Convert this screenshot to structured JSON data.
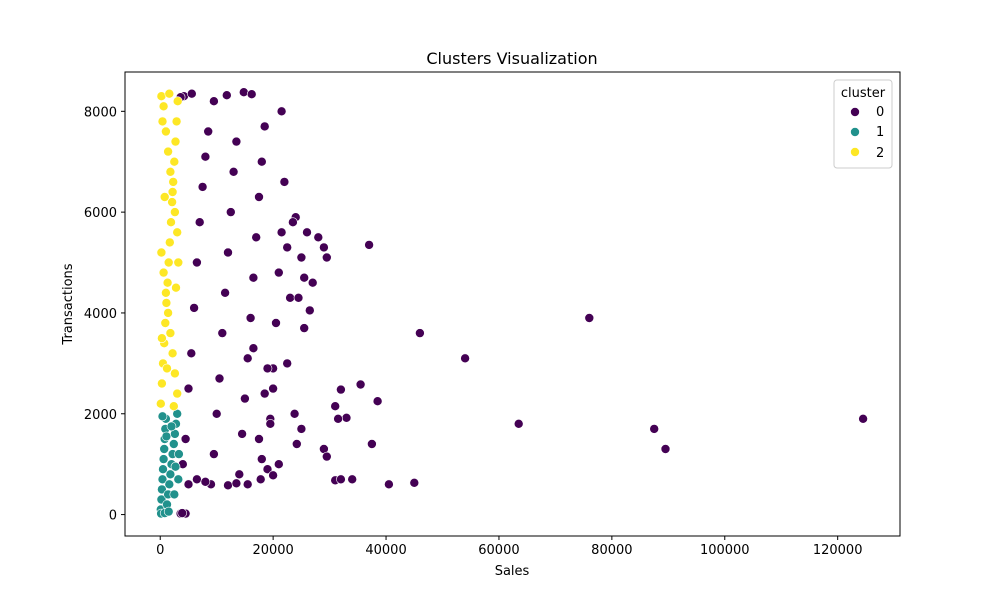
{
  "chart_data": {
    "type": "scatter",
    "title": "Clusters Visualization",
    "xlabel": "Sales",
    "ylabel": "Transactions",
    "xlim": [
      -6240,
      131040
    ],
    "ylim": [
      -425,
      8780
    ],
    "xticks": [
      0,
      20000,
      40000,
      60000,
      80000,
      100000,
      120000
    ],
    "yticks": [
      0,
      2000,
      4000,
      6000,
      8000
    ],
    "grid": false,
    "legend": {
      "title": "cluster",
      "placement": "top-right"
    },
    "series": [
      {
        "name": "0",
        "color": "#440154",
        "points": [
          [
            4000,
            1000
          ],
          [
            4500,
            1500
          ],
          [
            5000,
            2500
          ],
          [
            5500,
            3200
          ],
          [
            6000,
            4100
          ],
          [
            6500,
            5000
          ],
          [
            7000,
            5800
          ],
          [
            7500,
            6500
          ],
          [
            8000,
            7100
          ],
          [
            8500,
            7600
          ],
          [
            9000,
            600
          ],
          [
            9500,
            1200
          ],
          [
            10000,
            2000
          ],
          [
            10500,
            2700
          ],
          [
            11000,
            3600
          ],
          [
            11500,
            4400
          ],
          [
            12000,
            5200
          ],
          [
            12500,
            6000
          ],
          [
            13000,
            6800
          ],
          [
            13500,
            7400
          ],
          [
            14000,
            800
          ],
          [
            14500,
            1600
          ],
          [
            15000,
            2300
          ],
          [
            15500,
            3100
          ],
          [
            16000,
            3900
          ],
          [
            16500,
            4700
          ],
          [
            17000,
            5500
          ],
          [
            17500,
            6300
          ],
          [
            18000,
            7000
          ],
          [
            18500,
            7700
          ],
          [
            19000,
            900
          ],
          [
            19500,
            1900
          ],
          [
            20000,
            2900
          ],
          [
            20500,
            3800
          ],
          [
            21000,
            4800
          ],
          [
            21500,
            5600
          ],
          [
            22000,
            6600
          ],
          [
            22500,
            5300
          ],
          [
            23000,
            4300
          ],
          [
            24000,
            5900
          ],
          [
            4200,
            8300
          ],
          [
            5600,
            8350
          ],
          [
            9500,
            8200
          ],
          [
            11800,
            8320
          ],
          [
            14800,
            8380
          ],
          [
            16200,
            8340
          ],
          [
            21500,
            8000
          ],
          [
            3600,
            8280
          ],
          [
            5000,
            600
          ],
          [
            6500,
            700
          ],
          [
            8000,
            650
          ],
          [
            12000,
            580
          ],
          [
            13500,
            620
          ],
          [
            17800,
            700
          ],
          [
            20000,
            780
          ],
          [
            15500,
            600
          ],
          [
            25000,
            5100
          ],
          [
            25500,
            4700
          ],
          [
            26000,
            5600
          ],
          [
            27000,
            4600
          ],
          [
            28000,
            5500
          ],
          [
            29000,
            5300
          ],
          [
            29500,
            5100
          ],
          [
            24500,
            4300
          ],
          [
            22000,
            6600
          ],
          [
            23500,
            5800
          ],
          [
            26500,
            4050
          ],
          [
            25500,
            3700
          ],
          [
            23800,
            2000
          ],
          [
            24200,
            1400
          ],
          [
            25000,
            1700
          ],
          [
            22500,
            3000
          ],
          [
            18500,
            2400
          ],
          [
            20000,
            2500
          ],
          [
            18000,
            1100
          ],
          [
            19500,
            1800
          ],
          [
            21000,
            1000
          ],
          [
            16500,
            3300
          ],
          [
            17500,
            1500
          ],
          [
            19000,
            2900
          ],
          [
            3600,
            20
          ],
          [
            4200,
            20
          ],
          [
            4500,
            20
          ],
          [
            3900,
            30
          ],
          [
            37000,
            5350
          ],
          [
            46000,
            3600
          ],
          [
            54000,
            3100
          ],
          [
            76000,
            3900
          ],
          [
            124500,
            1900
          ],
          [
            87500,
            1700
          ],
          [
            89500,
            1300
          ],
          [
            63500,
            1800
          ],
          [
            31000,
            2150
          ],
          [
            32000,
            2480
          ],
          [
            33000,
            1920
          ],
          [
            35500,
            2580
          ],
          [
            38500,
            2250
          ],
          [
            37500,
            1400
          ],
          [
            29000,
            1300
          ],
          [
            29500,
            1150
          ],
          [
            31000,
            680
          ],
          [
            32000,
            700
          ],
          [
            34000,
            700
          ],
          [
            40500,
            600
          ],
          [
            45000,
            630
          ],
          [
            31500,
            1900
          ]
        ]
      },
      {
        "name": "1",
        "color": "#21918c",
        "points": [
          [
            100,
            100
          ],
          [
            200,
            300
          ],
          [
            300,
            500
          ],
          [
            400,
            700
          ],
          [
            500,
            900
          ],
          [
            600,
            1100
          ],
          [
            700,
            1300
          ],
          [
            800,
            1500
          ],
          [
            900,
            1700
          ],
          [
            1000,
            1900
          ],
          [
            1200,
            200
          ],
          [
            1400,
            400
          ],
          [
            1600,
            600
          ],
          [
            1800,
            800
          ],
          [
            2000,
            1000
          ],
          [
            2200,
            1200
          ],
          [
            2400,
            1400
          ],
          [
            2600,
            1600
          ],
          [
            2800,
            1800
          ],
          [
            3000,
            2000
          ],
          [
            150,
            20
          ],
          [
            800,
            30
          ],
          [
            1500,
            60
          ],
          [
            400,
            1950
          ],
          [
            2500,
            400
          ],
          [
            3200,
            700
          ],
          [
            2000,
            1750
          ],
          [
            1100,
            1550
          ],
          [
            2700,
            950
          ],
          [
            3300,
            1200
          ]
        ]
      },
      {
        "name": "2",
        "color": "#fde725",
        "points": [
          [
            100,
            2200
          ],
          [
            300,
            2600
          ],
          [
            500,
            3000
          ],
          [
            700,
            3400
          ],
          [
            900,
            3800
          ],
          [
            1100,
            4200
          ],
          [
            1300,
            4600
          ],
          [
            1500,
            5000
          ],
          [
            1700,
            5400
          ],
          [
            1900,
            5800
          ],
          [
            2100,
            6200
          ],
          [
            2300,
            6600
          ],
          [
            2500,
            7000
          ],
          [
            2700,
            7400
          ],
          [
            2900,
            7800
          ],
          [
            3100,
            8200
          ],
          [
            200,
            8300
          ],
          [
            600,
            8100
          ],
          [
            1000,
            7600
          ],
          [
            1400,
            7200
          ],
          [
            1800,
            6800
          ],
          [
            2200,
            6400
          ],
          [
            2600,
            6000
          ],
          [
            3000,
            5600
          ],
          [
            200,
            5200
          ],
          [
            600,
            4800
          ],
          [
            1000,
            4400
          ],
          [
            1400,
            4000
          ],
          [
            1800,
            3600
          ],
          [
            2200,
            3200
          ],
          [
            2600,
            2800
          ],
          [
            3000,
            2400
          ],
          [
            300,
            3500
          ],
          [
            800,
            6300
          ],
          [
            1200,
            2900
          ],
          [
            2800,
            4500
          ],
          [
            3200,
            5000
          ],
          [
            400,
            7800
          ],
          [
            1600,
            8350
          ],
          [
            2400,
            2150
          ]
        ]
      }
    ]
  }
}
